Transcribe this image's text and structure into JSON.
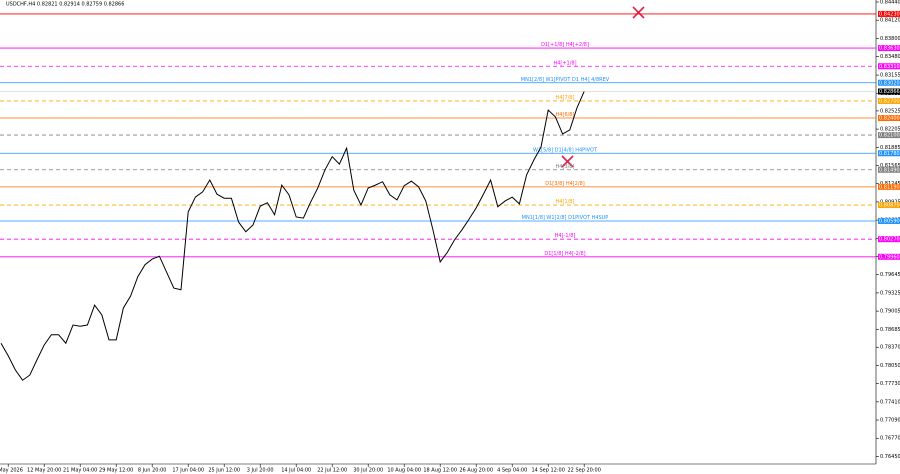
{
  "chart_data": {
    "type": "line",
    "title": "USDCHF,H4 0.82821 0.82914 0.82759 0.82866",
    "color": "#000000",
    "categories": [
      null,
      "4 May 2026",
      null,
      null,
      null,
      null,
      "12 May 20:00",
      null,
      null,
      null,
      null,
      "21 May 04:00",
      null,
      null,
      null,
      null,
      "29 May 12:00",
      null,
      null,
      null,
      null,
      "8 Jun 20:00",
      null,
      null,
      null,
      null,
      "17 Jun 04:00",
      null,
      null,
      null,
      null,
      "25 Jun 12:00",
      null,
      null,
      null,
      null,
      "3 Jul 20:00",
      null,
      null,
      null,
      null,
      "14 Jul 04:00",
      null,
      null,
      null,
      null,
      "22 Jul 12:00",
      null,
      null,
      null,
      null,
      "30 Jul 20:00",
      null,
      null,
      null,
      null,
      "10 Aug 04:00",
      null,
      null,
      null,
      null,
      "18 Aug 12:00",
      null,
      null,
      null,
      null,
      "26 Aug 20:00",
      null,
      null,
      null,
      null,
      "4 Sep 04:00",
      null,
      null,
      null,
      null,
      "14 Sep 12:00",
      null,
      null,
      null,
      null,
      "22 Sep 20:00"
    ],
    "values": [
      0.7844,
      0.7822,
      0.7797,
      0.7779,
      0.7788,
      0.7815,
      0.7841,
      0.7859,
      0.7859,
      0.7844,
      0.7876,
      0.7874,
      0.7876,
      0.7911,
      0.7894,
      0.785,
      0.785,
      0.7906,
      0.7927,
      0.7961,
      0.7982,
      0.7992,
      0.7997,
      0.7969,
      0.7941,
      0.7938,
      0.8075,
      0.8101,
      0.811,
      0.8131,
      0.8106,
      0.8099,
      0.8099,
      0.8057,
      0.804,
      0.8052,
      0.8085,
      0.8091,
      0.807,
      0.8122,
      0.8105,
      0.8066,
      0.8064,
      0.8092,
      0.8117,
      0.8149,
      0.8172,
      0.8159,
      0.8187,
      0.8113,
      0.8087,
      0.8117,
      0.8122,
      0.8128,
      0.8105,
      0.8096,
      0.8121,
      0.8129,
      0.8119,
      0.8094,
      0.8043,
      0.7987,
      0.8004,
      0.8026,
      0.8043,
      0.8062,
      0.8082,
      0.8106,
      0.8131,
      0.8084,
      0.8094,
      0.8101,
      0.8089,
      0.814,
      0.8166,
      0.8189,
      0.8254,
      0.8242,
      0.8212,
      0.8219,
      0.8258,
      0.8287
    ],
    "ylim": [
      0.76317,
      0.84475
    ],
    "yticks": [
      {
        "value": 0.8444,
        "label": "0.84440"
      },
      {
        "value": 0.8412,
        "label": "0.84120"
      },
      {
        "value": 0.838,
        "label": "0.83800"
      },
      {
        "value": 0.8348,
        "label": "0.83480"
      },
      {
        "value": 0.83155,
        "label": "0.83155"
      },
      {
        "value": 0.82835,
        "label": "0.82835"
      },
      {
        "value": 0.82525,
        "label": "0.82525"
      },
      {
        "value": 0.82205,
        "label": "0.82205"
      },
      {
        "value": 0.81885,
        "label": "0.81885"
      },
      {
        "value": 0.81565,
        "label": "0.81565"
      },
      {
        "value": 0.81245,
        "label": "0.81245"
      },
      {
        "value": 0.80925,
        "label": "0.80925"
      },
      {
        "value": 0.80605,
        "label": "0.80605"
      },
      {
        "value": 0.80285,
        "label": "0.80285"
      },
      {
        "value": 0.79965,
        "label": "0.79965"
      },
      {
        "value": 0.79645,
        "label": "0.79645"
      },
      {
        "value": 0.79325,
        "label": "0.79325"
      },
      {
        "value": 0.79005,
        "label": "0.79005"
      },
      {
        "value": 0.78685,
        "label": "0.78685"
      },
      {
        "value": 0.7837,
        "label": "0.78370"
      },
      {
        "value": 0.7805,
        "label": "0.78050"
      },
      {
        "value": 0.7773,
        "label": "0.77730"
      },
      {
        "value": 0.7741,
        "label": "0.77410"
      },
      {
        "value": 0.7709,
        "label": "0.77090"
      },
      {
        "value": 0.7677,
        "label": "0.76770"
      },
      {
        "value": 0.7645,
        "label": "0.76450"
      }
    ],
    "levels": [
      {
        "value": 0.8423,
        "price_label": "0.84230",
        "color": "#ff0000",
        "dashed": false
      },
      {
        "value": 0.8363,
        "price_label": "0.83630",
        "color": "#ff00ff",
        "dashed": false,
        "label": "D1[+1/8] H4[+2/8]"
      },
      {
        "value": 0.8331,
        "price_label": "0.83310",
        "color": "#ff00ff",
        "dashed": true,
        "label": "H4[+1/8]"
      },
      {
        "value": 0.8302,
        "price_label": "0.83020",
        "color": "#1e90ff",
        "dashed": false,
        "label": "MN1[2/8] W1[PIVOT D1 H4] 4/8REV"
      },
      {
        "value": 0.827,
        "price_label": "0.82700",
        "color": "#ffa500",
        "dashed": true,
        "label": "H4[7/8]"
      },
      {
        "value": 0.824,
        "price_label": "0.82400",
        "color": "#ff6a00",
        "dashed": false,
        "label": "H4[6/8]"
      },
      {
        "value": 0.821,
        "price_label": "0.82100",
        "color": "#808080",
        "dashed": true
      },
      {
        "value": 0.8178,
        "price_label": "0.81780",
        "color": "#1e90ff",
        "dashed": false,
        "label": "W1[5/8] D1[4/8] H4PIVOT"
      },
      {
        "value": 0.8149,
        "price_label": "0.81490",
        "color": "#808080",
        "dashed": true,
        "label": "H4[3/8]"
      },
      {
        "value": 0.8119,
        "price_label": "0.81190",
        "color": "#ff6a00",
        "dashed": false,
        "label": "D1[3/8] H4[2/8]"
      },
      {
        "value": 0.8087,
        "price_label": "0.80870",
        "color": "#ffa500",
        "dashed": true,
        "label": "H4[1/8]"
      },
      {
        "value": 0.8059,
        "price_label": "0.80590",
        "color": "#1e90ff",
        "dashed": false,
        "label": "MN1[1/8] W1[2/8] D1PIVOT H4SUP"
      },
      {
        "value": 0.8027,
        "price_label": "0.80270",
        "color": "#ff00ff",
        "dashed": true,
        "label": "H4[-1/8]"
      },
      {
        "value": 0.7996,
        "price_label": "0.79960",
        "color": "#ff00ff",
        "dashed": false,
        "label": "D1[1/8] H4[-2/8]"
      }
    ],
    "current_price": {
      "value": 0.82866,
      "label": "0.82866"
    }
  }
}
